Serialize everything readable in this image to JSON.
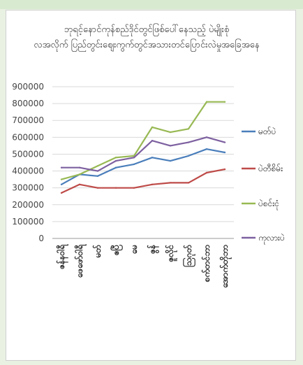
{
  "chart_data": {
    "type": "line",
    "title": "ဘုရင့်နောင်ကုန်စည်ဒိုင်တွင်ဖြစ်ပေါ်နေသည့် ပဲမျိုးစုံ\nလအလိုက် ပြည်တွင်းဈေးကွက်တွင်အသားတင်ပြောင်းလဲမှုအခြေအနေ",
    "x": [
      "ဇန်နဝါရီ",
      "ဖေဖော်ဝါရီ",
      "မတ်",
      "ဧပြီ",
      "မေ",
      "ဇွန်",
      "ဇူလိုင်",
      "ဩဂုတ်",
      "စက်တင်ဘာ",
      "အောက်တိုဘာ"
    ],
    "y_ticks": [
      "0",
      "100000",
      "200000",
      "300000",
      "400000",
      "500000",
      "600000",
      "700000",
      "800000",
      "900000"
    ],
    "ylim": [
      0,
      900000
    ],
    "legend_position": "right",
    "series": [
      {
        "name": "မတ်ပဲ",
        "color": "#4a7ebb",
        "values": [
          320000,
          380000,
          370000,
          420000,
          440000,
          480000,
          460000,
          490000,
          530000,
          510000
        ]
      },
      {
        "name": "ပဲတီစိမ်း",
        "color": "#be4b48",
        "values": [
          270000,
          320000,
          300000,
          300000,
          300000,
          320000,
          330000,
          330000,
          390000,
          410000
        ]
      },
      {
        "name": "ပဲစင်းငုံ",
        "color": "#98b954",
        "values": [
          350000,
          380000,
          430000,
          480000,
          490000,
          660000,
          630000,
          650000,
          810000,
          810000
        ]
      },
      {
        "name": "ကုလားပဲ",
        "color": "#7d60a0",
        "values": [
          420000,
          420000,
          400000,
          460000,
          480000,
          580000,
          550000,
          570000,
          600000,
          570000
        ]
      }
    ]
  }
}
